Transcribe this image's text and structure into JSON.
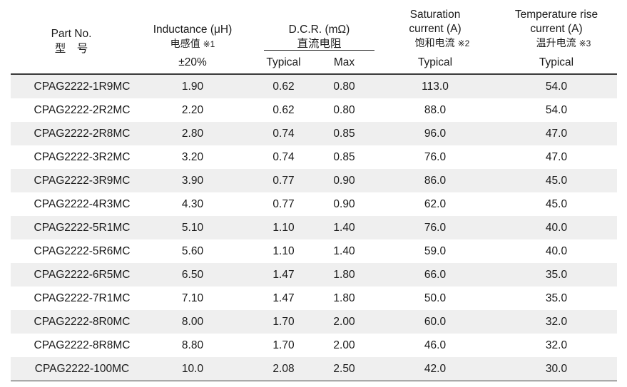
{
  "header": {
    "part_no": "Part No.",
    "part_no_cn": "型　号",
    "inductance": "Inductance (μH)",
    "inductance_cn": "电感值",
    "inductance_note": "※1",
    "tolerance": "±20%",
    "dcr": "D.C.R. (mΩ)",
    "dcr_cn": "直流电阻",
    "dcr_typical": "Typical",
    "dcr_max": "Max",
    "sat_line1": "Saturation",
    "sat_line2": "current (A)",
    "sat_cn": "饱和电流",
    "sat_note": "※2",
    "sat_typical": "Typical",
    "temp_line1": "Temperature rise",
    "temp_line2": "current (A)",
    "temp_cn": "温升电流",
    "temp_note": "※3",
    "temp_typical": "Typical"
  },
  "rows": [
    {
      "part": "CPAG2222-1R9MC",
      "inductance": "1.90",
      "dcr_typ": "0.62",
      "dcr_max": "0.80",
      "sat": "113.0",
      "temp": "54.0"
    },
    {
      "part": "CPAG2222-2R2MC",
      "inductance": "2.20",
      "dcr_typ": "0.62",
      "dcr_max": "0.80",
      "sat": "88.0",
      "temp": "54.0"
    },
    {
      "part": "CPAG2222-2R8MC",
      "inductance": "2.80",
      "dcr_typ": "0.74",
      "dcr_max": "0.85",
      "sat": "96.0",
      "temp": "47.0"
    },
    {
      "part": "CPAG2222-3R2MC",
      "inductance": "3.20",
      "dcr_typ": "0.74",
      "dcr_max": "0.85",
      "sat": "76.0",
      "temp": "47.0"
    },
    {
      "part": "CPAG2222-3R9MC",
      "inductance": "3.90",
      "dcr_typ": "0.77",
      "dcr_max": "0.90",
      "sat": "86.0",
      "temp": "45.0"
    },
    {
      "part": "CPAG2222-4R3MC",
      "inductance": "4.30",
      "dcr_typ": "0.77",
      "dcr_max": "0.90",
      "sat": "62.0",
      "temp": "45.0"
    },
    {
      "part": "CPAG2222-5R1MC",
      "inductance": "5.10",
      "dcr_typ": "1.10",
      "dcr_max": "1.40",
      "sat": "76.0",
      "temp": "40.0"
    },
    {
      "part": "CPAG2222-5R6MC",
      "inductance": "5.60",
      "dcr_typ": "1.10",
      "dcr_max": "1.40",
      "sat": "59.0",
      "temp": "40.0"
    },
    {
      "part": "CPAG2222-6R5MC",
      "inductance": "6.50",
      "dcr_typ": "1.47",
      "dcr_max": "1.80",
      "sat": "66.0",
      "temp": "35.0"
    },
    {
      "part": "CPAG2222-7R1MC",
      "inductance": "7.10",
      "dcr_typ": "1.47",
      "dcr_max": "1.80",
      "sat": "50.0",
      "temp": "35.0"
    },
    {
      "part": "CPAG2222-8R0MC",
      "inductance": "8.00",
      "dcr_typ": "1.70",
      "dcr_max": "2.00",
      "sat": "60.0",
      "temp": "32.0"
    },
    {
      "part": "CPAG2222-8R8MC",
      "inductance": "8.80",
      "dcr_typ": "1.70",
      "dcr_max": "2.00",
      "sat": "46.0",
      "temp": "32.0"
    },
    {
      "part": "CPAG2222-100MC",
      "inductance": "10.0",
      "dcr_typ": "2.08",
      "dcr_max": "2.50",
      "sat": "42.0",
      "temp": "30.0"
    }
  ]
}
